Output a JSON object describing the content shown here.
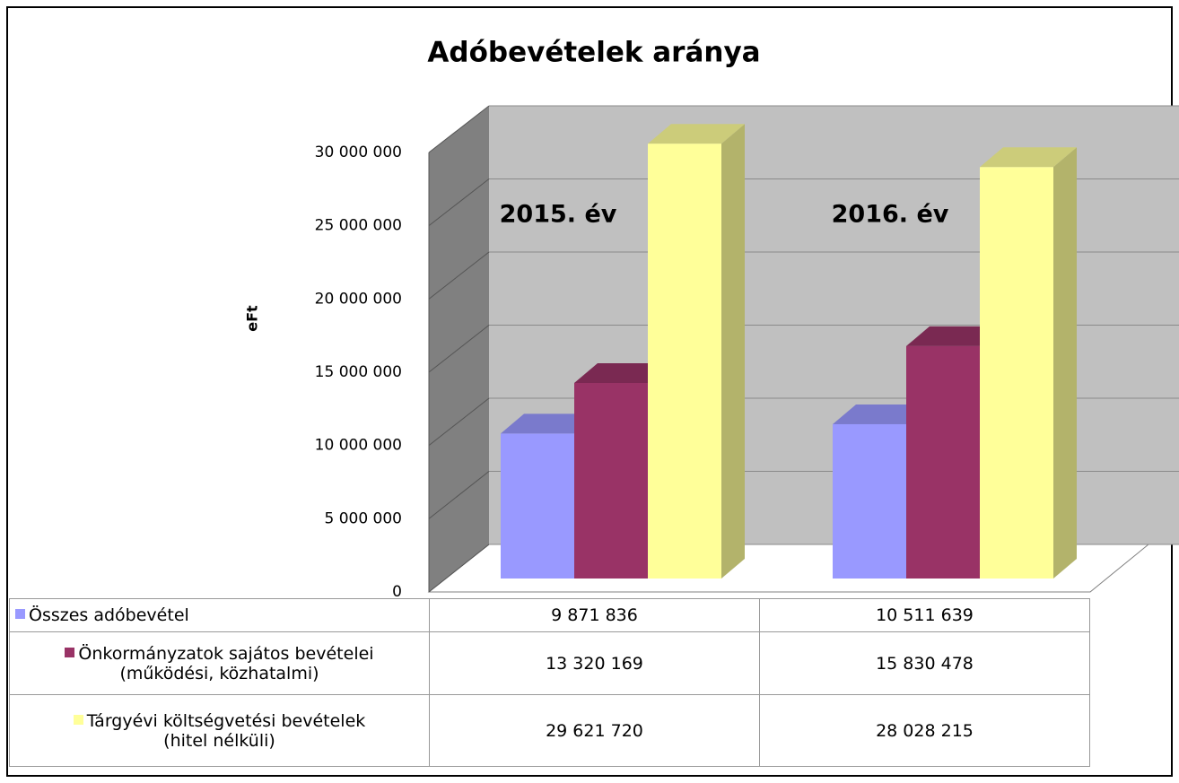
{
  "chart_data": {
    "type": "bar3d",
    "title": "Adóbevételek aránya",
    "y_label": "eFt",
    "categories": [
      "2015. év",
      "2016. év"
    ],
    "series": [
      {
        "name": "Összes adóbevétel",
        "color": "#9999ff",
        "values": [
          9871836,
          10511639
        ],
        "value_labels": [
          "9 871 836",
          "10 511 639"
        ]
      },
      {
        "name": "Önkormányzatok sajátos bevételei\n(működési, közhatalmi)",
        "color": "#993366",
        "values": [
          13320169,
          15830478
        ],
        "value_labels": [
          "13 320 169",
          "15 830 478"
        ]
      },
      {
        "name": "Tárgyévi költségvetési bevételek\n(hitel nélküli)",
        "color": "#ffff99",
        "values": [
          29621720,
          28028215
        ],
        "value_labels": [
          "29 621 720",
          "28 028 215"
        ]
      }
    ],
    "ylim": [
      0,
      30000000
    ],
    "yticks": [
      0,
      {
        "value": 5000000,
        "label": "5 000 000"
      },
      {
        "value": 10000000,
        "label": "10 000 000"
      },
      {
        "value": 15000000,
        "label": "15 000 000"
      },
      {
        "value": 20000000,
        "label": "20 000 000"
      },
      {
        "value": 25000000,
        "label": "25 000 000"
      },
      {
        "value": 30000000,
        "label": "30 000 000"
      }
    ],
    "grid": true
  }
}
